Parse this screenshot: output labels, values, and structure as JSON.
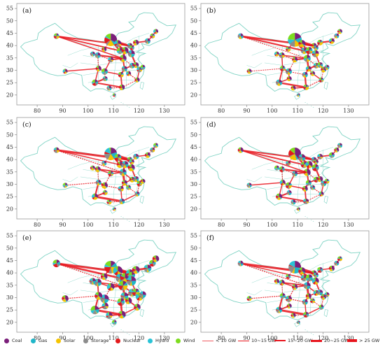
{
  "panels": [
    {
      "label": "(a)"
    },
    {
      "label": "(b)"
    },
    {
      "label": "(c)"
    },
    {
      "label": "(d)"
    },
    {
      "label": "(e)"
    },
    {
      "label": "(f)"
    }
  ],
  "axes": {
    "x_ticks": [
      "80",
      "90",
      "100",
      "110",
      "120",
      "130"
    ],
    "y_ticks": [
      "20",
      "25",
      "30",
      "35",
      "40",
      "45",
      "50",
      "55"
    ]
  },
  "legend": {
    "sources": [
      {
        "label": "Coal",
        "color": "#7b1f7a"
      },
      {
        "label": "Gas",
        "color": "#1fb6c9"
      },
      {
        "label": "Solar",
        "color": "#f5c400"
      },
      {
        "label": "Storage",
        "color": "#8c8c8c"
      },
      {
        "label": "Nuclear",
        "color": "#e31a1c"
      },
      {
        "label": "Hydro",
        "color": "#29c3d6"
      },
      {
        "label": "Wind",
        "color": "#7ddc1f"
      }
    ],
    "lines": [
      {
        "label": "< 10 GW",
        "style": "thin-dash"
      },
      {
        "label": "10~15 GW",
        "style": "thin"
      },
      {
        "label": "15~20 GW",
        "style": "medium"
      },
      {
        "label": "20~25 GW",
        "style": "thick"
      },
      {
        "label": "> 25 GW",
        "style": "thickest"
      }
    ]
  },
  "colors": {
    "boundary": "#7fd3c4",
    "link": "#e8141c",
    "frame": "#999999"
  }
}
